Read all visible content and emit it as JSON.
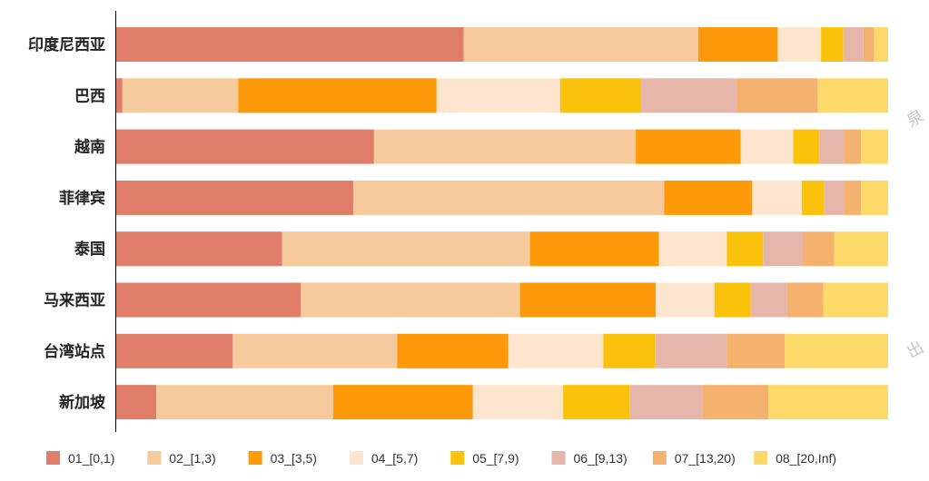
{
  "chart_data": {
    "type": "bar",
    "orientation": "horizontal",
    "stacked": true,
    "normalized": true,
    "grid": false,
    "legend_position": "bottom",
    "xlim": [
      0,
      100
    ],
    "categories": [
      "印度尼西亚",
      "巴西",
      "越南",
      "菲律宾",
      "泰国",
      "马来西亚",
      "台湾站点",
      "新加坡"
    ],
    "series": [
      {
        "name": "01_[0,1)",
        "color": "#E07E6A",
        "values": [
          45.0,
          0.8,
          33.4,
          30.7,
          21.5,
          23.9,
          15.1,
          5.2
        ]
      },
      {
        "name": "02_[1,3)",
        "color": "#F6CA9D",
        "values": [
          30.4,
          15.0,
          33.9,
          40.3,
          32.1,
          28.4,
          21.3,
          22.9
        ]
      },
      {
        "name": "03_[3,5)",
        "color": "#FE9A0A",
        "values": [
          10.3,
          25.7,
          13.6,
          11.4,
          16.7,
          17.6,
          14.4,
          18.1
        ]
      },
      {
        "name": "04_[5,7)",
        "color": "#FDE6CD",
        "values": [
          5.6,
          16.0,
          6.8,
          6.4,
          8.8,
          7.6,
          12.3,
          11.7
        ]
      },
      {
        "name": "05_[7,9)",
        "color": "#FAC20A",
        "values": [
          2.9,
          10.5,
          3.4,
          2.9,
          4.7,
          4.7,
          6.7,
          8.6
        ]
      },
      {
        "name": "06_[9,13)",
        "color": "#E7B6AB",
        "values": [
          2.6,
          12.4,
          3.2,
          2.6,
          5.2,
          4.7,
          9.3,
          9.4
        ]
      },
      {
        "name": "07_[13,20)",
        "color": "#F5B26F",
        "values": [
          1.4,
          10.5,
          2.2,
          2.2,
          4.0,
          4.7,
          7.5,
          8.6
        ]
      },
      {
        "name": "08_[20,Inf)",
        "color": "#FDD96A",
        "values": [
          1.8,
          9.1,
          3.5,
          3.5,
          7.0,
          8.4,
          13.4,
          15.5
        ]
      }
    ]
  },
  "watermark": [
    "泉",
    "出"
  ]
}
